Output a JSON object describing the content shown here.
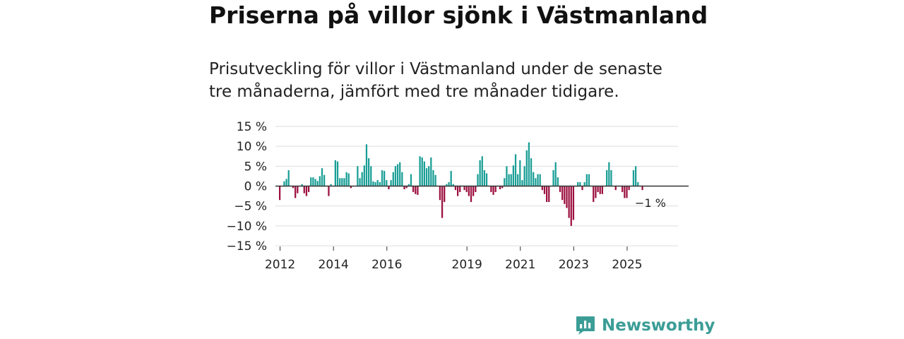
{
  "title": "Priserna på villor sjönk i Västmanland",
  "subtitle": "Prisutveckling för villor i Västmanland under de senaste tre månaderna, jämfört med tre månader tidigare.",
  "brand": "Newsworthy",
  "colors": {
    "positive": "#1a9e96",
    "negative": "#9c1040",
    "grid": "#dddddd",
    "zero_line": "#333333",
    "brand": "#3b9d96"
  },
  "chart_data": {
    "type": "bar",
    "title": "Priserna på villor sjönk i Västmanland",
    "ylabel": "",
    "xlabel": "",
    "ylim": [
      -15,
      15
    ],
    "y_ticks": [
      15,
      10,
      5,
      0,
      -5,
      -10,
      -15
    ],
    "y_tick_labels": [
      "15 %",
      "10 %",
      "5 %",
      "0 %",
      "−5 %",
      "−10 %",
      "−15 %"
    ],
    "x_ticks": [
      2012,
      2014,
      2016,
      2019,
      2021,
      2023,
      2025
    ],
    "x_tick_labels": [
      "2012",
      "2014",
      "2016",
      "2019",
      "2021",
      "2023",
      "2025"
    ],
    "start": "2012-01",
    "series": [
      {
        "name": "Prisutveckling",
        "values": [
          -3.5,
          0,
          1.2,
          1.8,
          4,
          0,
          -0.5,
          -3,
          -1.8,
          0,
          0.5,
          -1.8,
          -2.5,
          -1.5,
          2.2,
          2.2,
          1.8,
          1.3,
          2.5,
          4.5,
          2.8,
          0,
          -2.5,
          0.5,
          0,
          6.5,
          6.2,
          2,
          2,
          2,
          3.5,
          3.2,
          -0.5,
          0,
          0,
          5,
          2,
          3.5,
          5.2,
          10.5,
          7,
          5,
          1.2,
          1,
          1.5,
          1,
          4,
          3.8,
          1.5,
          -0.8,
          1.5,
          3.5,
          5,
          5.5,
          6,
          3.5,
          -0.8,
          -0.5,
          0.5,
          3,
          -1.5,
          -2,
          -2.2,
          7.5,
          7.2,
          6.2,
          4.5,
          5,
          7.2,
          4,
          2.8,
          0,
          -3.5,
          -8,
          -4,
          0.5,
          1,
          3.8,
          0.5,
          -1,
          -2.5,
          -1.5,
          0,
          -1,
          -1.5,
          -2.5,
          -4,
          -2.5,
          -1.5,
          3,
          6.5,
          7.5,
          4,
          3.2,
          0,
          -1.5,
          -2.2,
          -1.5,
          0,
          -0.8,
          -0.5,
          2,
          5,
          3,
          3,
          5.2,
          8,
          3,
          6.5,
          1.5,
          5,
          9,
          11,
          7,
          3.5,
          2,
          3,
          3,
          -1,
          -2,
          -4,
          -4,
          0,
          4,
          6,
          2.2,
          -1.5,
          -3.5,
          -4.5,
          -5.5,
          -8,
          -10,
          -8.5,
          0,
          1,
          1,
          -1,
          1,
          3,
          3,
          0,
          -4,
          -3,
          -1.5,
          -2,
          -2,
          0,
          4,
          6,
          4,
          0,
          -1,
          0,
          0,
          -1.5,
          -3,
          -3,
          -1,
          0,
          4,
          5,
          1,
          0,
          -1
        ]
      }
    ],
    "annotations": [
      {
        "text": "−1 %",
        "x": "2025-12",
        "y": -1
      }
    ]
  }
}
